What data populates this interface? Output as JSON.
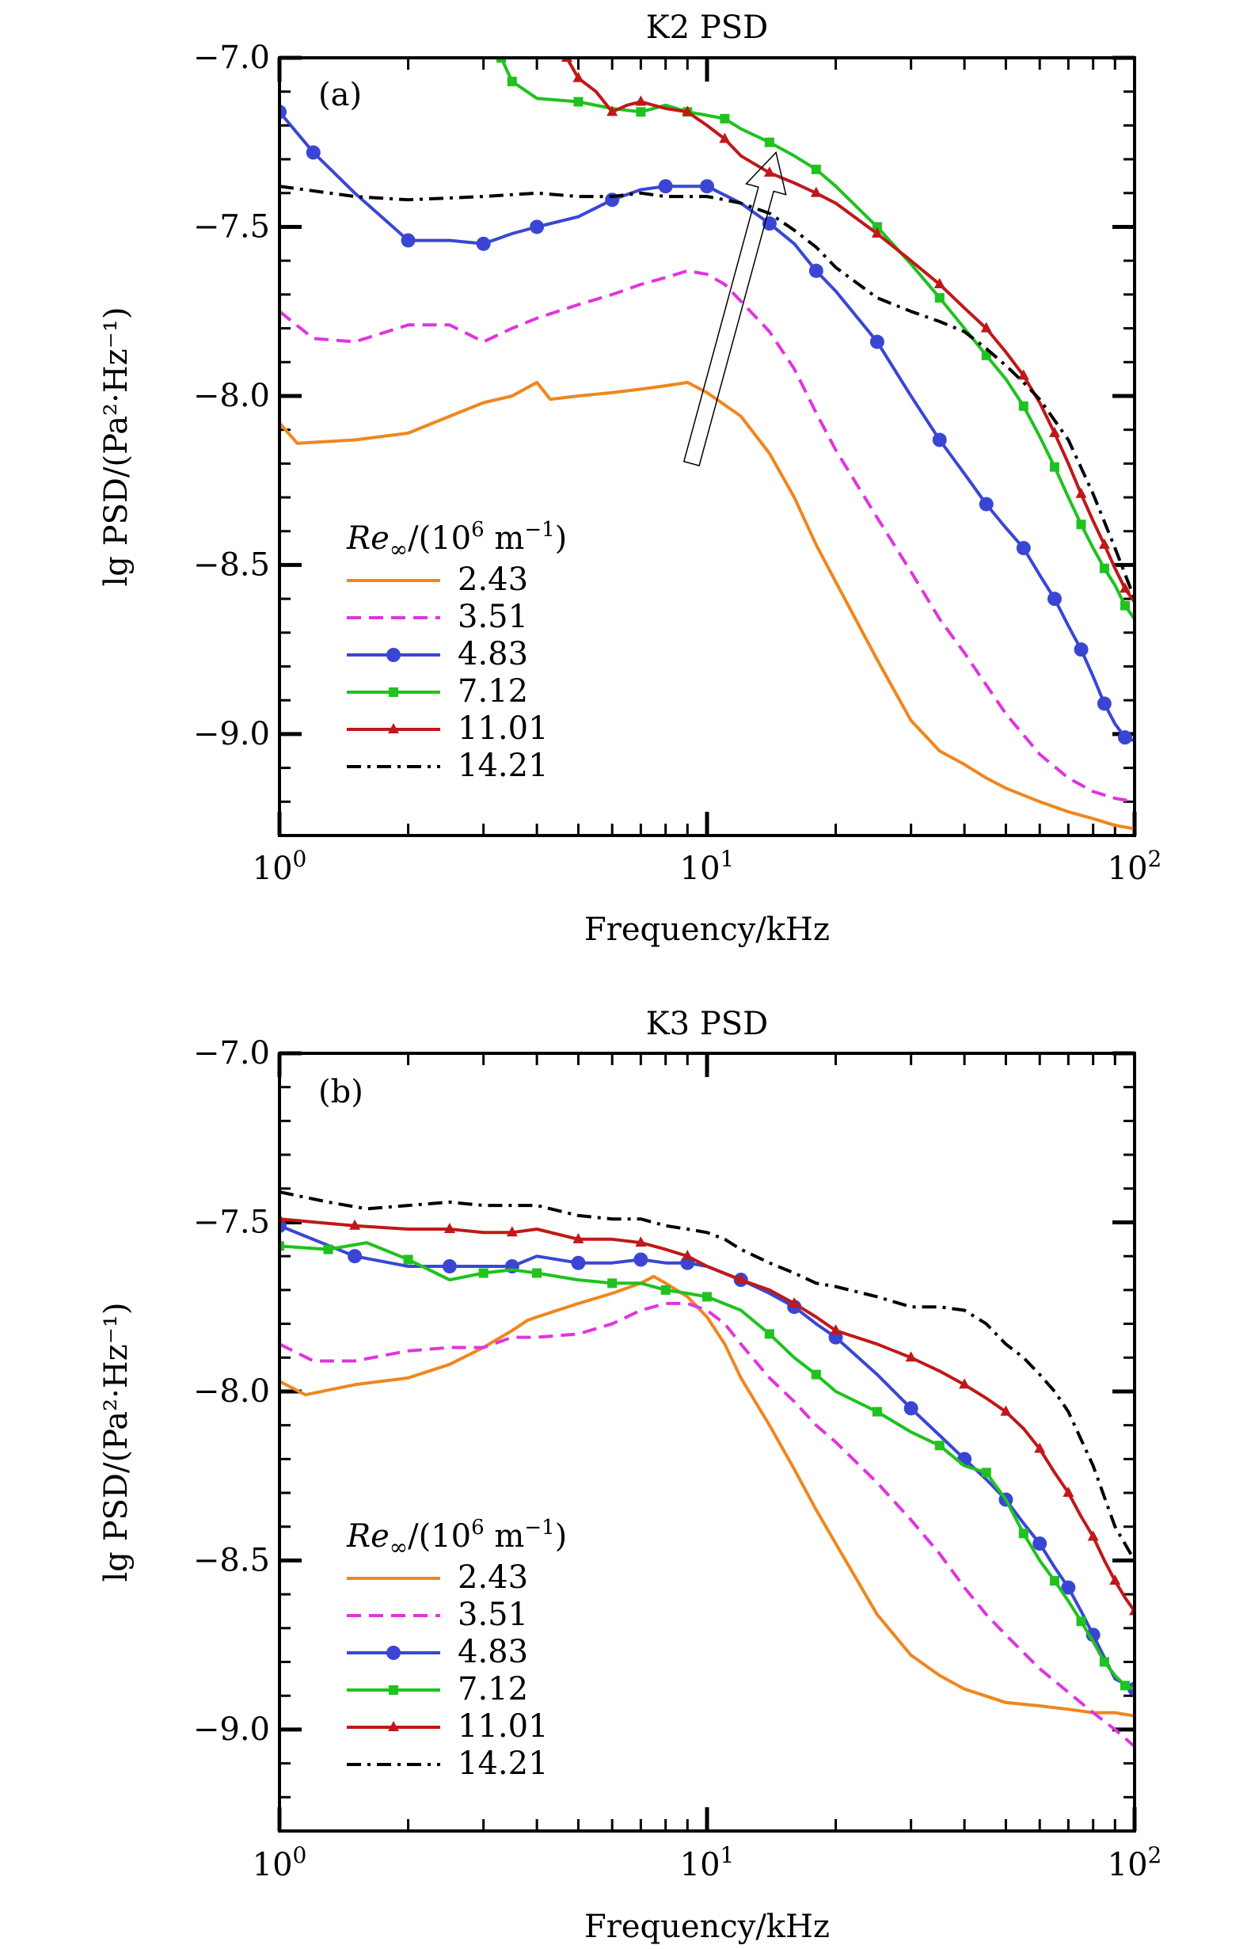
{
  "chart_data": [
    {
      "type": "line",
      "title": "K2 PSD",
      "panel_label": "(a)",
      "xlabel": "Frequency/kHz",
      "ylabel": "lg PSD/(Pa²·Hz⁻¹)",
      "x_scale": "log",
      "xlim": [
        1,
        100
      ],
      "ylim": [
        -9.3,
        -7.0
      ],
      "x_ticks": [
        {
          "value": 1,
          "base": "10",
          "exp": "0"
        },
        {
          "value": 10,
          "base": "10",
          "exp": "1"
        },
        {
          "value": 100,
          "base": "10",
          "exp": "2"
        }
      ],
      "y_ticks": [
        {
          "value": -7.0,
          "label": "−7.0"
        },
        {
          "value": -7.5,
          "label": "−7.5"
        },
        {
          "value": -8.0,
          "label": "−8.0"
        },
        {
          "value": -8.5,
          "label": "−8.5"
        },
        {
          "value": -9.0,
          "label": "−9.0"
        }
      ],
      "legend_title": {
        "base": "Re",
        "sub": "∞",
        "text": "/(10",
        "sup": "6",
        "unit": " m",
        "unit_sup": "−1",
        "close": ")"
      },
      "legend_position": "bottom-left",
      "annotation": "arrow pointing in direction of increasing Re∞ (from lower-left to upper-right)",
      "arrow": {
        "from": [
          9.2,
          -8.2
        ],
        "to": [
          14.5,
          -7.28
        ]
      },
      "series": [
        {
          "name": "2.43",
          "color": "#f0861e",
          "style": "solid",
          "marker": "none",
          "x": [
            1,
            1.1,
            1.5,
            2,
            2.5,
            3,
            3.5,
            4,
            4.3,
            5,
            6,
            7,
            8,
            9,
            10,
            12,
            14,
            16,
            18,
            20,
            25,
            30,
            35,
            40,
            45,
            50,
            60,
            70,
            80,
            90,
            100
          ],
          "y": [
            -8.08,
            -8.14,
            -8.13,
            -8.11,
            -8.06,
            -8.02,
            -8.0,
            -7.96,
            -8.01,
            -8.0,
            -7.99,
            -7.98,
            -7.97,
            -7.96,
            -7.99,
            -8.06,
            -8.17,
            -8.3,
            -8.44,
            -8.55,
            -8.78,
            -8.96,
            -9.05,
            -9.09,
            -9.13,
            -9.16,
            -9.2,
            -9.23,
            -9.25,
            -9.27,
            -9.28
          ]
        },
        {
          "name": "3.51",
          "color": "#e034e0",
          "style": "dashed",
          "marker": "none",
          "x": [
            1,
            1.2,
            1.5,
            2,
            2.5,
            3,
            3.5,
            4,
            5,
            6,
            7,
            8,
            9,
            10,
            11,
            12,
            14,
            16,
            18,
            20,
            25,
            30,
            35,
            40,
            50,
            60,
            70,
            80,
            90,
            100
          ],
          "y": [
            -7.75,
            -7.83,
            -7.84,
            -7.79,
            -7.79,
            -7.84,
            -7.8,
            -7.77,
            -7.73,
            -7.7,
            -7.67,
            -7.65,
            -7.63,
            -7.64,
            -7.67,
            -7.72,
            -7.81,
            -7.92,
            -8.05,
            -8.16,
            -8.36,
            -8.52,
            -8.66,
            -8.76,
            -8.94,
            -9.06,
            -9.13,
            -9.17,
            -9.19,
            -9.2
          ]
        },
        {
          "name": "4.83",
          "color": "#3a46d3",
          "style": "solid",
          "marker": "circle",
          "x": [
            1,
            1.2,
            1.5,
            2,
            2.5,
            3,
            3.5,
            4,
            5,
            6,
            7,
            8,
            9,
            10,
            12,
            14,
            16,
            18,
            20,
            25,
            30,
            35,
            40,
            45,
            50,
            55,
            60,
            65,
            70,
            75,
            80,
            85,
            90,
            95,
            100
          ],
          "y": [
            -7.16,
            -7.28,
            -7.4,
            -7.54,
            -7.54,
            -7.55,
            -7.52,
            -7.5,
            -7.47,
            -7.42,
            -7.39,
            -7.38,
            -7.38,
            -7.38,
            -7.43,
            -7.49,
            -7.55,
            -7.63,
            -7.69,
            -7.84,
            -8.0,
            -8.13,
            -8.23,
            -8.32,
            -8.39,
            -8.45,
            -8.53,
            -8.6,
            -8.68,
            -8.75,
            -8.83,
            -8.91,
            -8.97,
            -9.01,
            -9.02
          ]
        },
        {
          "name": "7.12",
          "color": "#1fc21f",
          "style": "solid",
          "marker": "square",
          "x": [
            3.3,
            3.5,
            4,
            5,
            6,
            7,
            8,
            9,
            10,
            11,
            12,
            14,
            16,
            18,
            20,
            25,
            30,
            35,
            40,
            45,
            50,
            55,
            60,
            65,
            70,
            75,
            80,
            85,
            90,
            95,
            100
          ],
          "y": [
            -7.0,
            -7.07,
            -7.12,
            -7.13,
            -7.15,
            -7.16,
            -7.14,
            -7.16,
            -7.17,
            -7.18,
            -7.21,
            -7.25,
            -7.29,
            -7.33,
            -7.38,
            -7.5,
            -7.61,
            -7.71,
            -7.8,
            -7.88,
            -7.95,
            -8.03,
            -8.12,
            -8.21,
            -8.3,
            -8.38,
            -8.45,
            -8.51,
            -8.56,
            -8.62,
            -8.66
          ]
        },
        {
          "name": "11.01",
          "color": "#c01818",
          "style": "solid",
          "marker": "triangle",
          "x": [
            4.7,
            5,
            5.5,
            6,
            6.5,
            7,
            8,
            9,
            10,
            11,
            12,
            14,
            16,
            18,
            20,
            25,
            30,
            35,
            40,
            45,
            50,
            55,
            60,
            65,
            70,
            75,
            80,
            85,
            90,
            95,
            100
          ],
          "y": [
            -7.0,
            -7.06,
            -7.1,
            -7.16,
            -7.14,
            -7.13,
            -7.15,
            -7.16,
            -7.2,
            -7.24,
            -7.29,
            -7.34,
            -7.37,
            -7.4,
            -7.43,
            -7.52,
            -7.6,
            -7.67,
            -7.74,
            -7.8,
            -7.87,
            -7.94,
            -8.02,
            -8.11,
            -8.2,
            -8.29,
            -8.37,
            -8.44,
            -8.51,
            -8.57,
            -8.61
          ]
        },
        {
          "name": "14.21",
          "color": "#000000",
          "style": "dashdot",
          "marker": "none",
          "x": [
            1,
            1.5,
            2,
            3,
            4,
            5,
            6,
            7,
            8,
            9,
            10,
            11,
            12,
            14,
            16,
            18,
            20,
            25,
            30,
            35,
            40,
            45,
            50,
            55,
            60,
            70,
            80,
            90,
            100
          ],
          "y": [
            -7.38,
            -7.41,
            -7.42,
            -7.41,
            -7.4,
            -7.41,
            -7.41,
            -7.4,
            -7.41,
            -7.41,
            -7.41,
            -7.42,
            -7.43,
            -7.46,
            -7.51,
            -7.56,
            -7.62,
            -7.71,
            -7.75,
            -7.78,
            -7.81,
            -7.86,
            -7.91,
            -7.96,
            -8.01,
            -8.13,
            -8.29,
            -8.45,
            -8.6
          ]
        }
      ]
    },
    {
      "type": "line",
      "title": "K3 PSD",
      "panel_label": "(b)",
      "xlabel": "Frequency/kHz",
      "ylabel": "lg PSD/(Pa²·Hz⁻¹)",
      "x_scale": "log",
      "xlim": [
        1,
        100
      ],
      "ylim": [
        -9.3,
        -7.0
      ],
      "x_ticks": [
        {
          "value": 1,
          "base": "10",
          "exp": "0"
        },
        {
          "value": 10,
          "base": "10",
          "exp": "1"
        },
        {
          "value": 100,
          "base": "10",
          "exp": "2"
        }
      ],
      "y_ticks": [
        {
          "value": -7.0,
          "label": "−7.0"
        },
        {
          "value": -7.5,
          "label": "−7.5"
        },
        {
          "value": -8.0,
          "label": "−8.0"
        },
        {
          "value": -8.5,
          "label": "−8.5"
        },
        {
          "value": -9.0,
          "label": "−9.0"
        }
      ],
      "legend_title": {
        "base": "Re",
        "sub": "∞",
        "text": "/(10",
        "sup": "6",
        "unit": " m",
        "unit_sup": "−1",
        "close": ")"
      },
      "legend_position": "bottom-left",
      "series": [
        {
          "name": "2.43",
          "color": "#f0861e",
          "style": "solid",
          "marker": "none",
          "x": [
            1,
            1.15,
            1.5,
            2,
            2.5,
            3,
            3.5,
            3.8,
            4,
            5,
            6,
            7,
            7.5,
            8,
            9,
            10,
            11,
            12,
            14,
            16,
            18,
            20,
            25,
            30,
            35,
            40,
            50,
            60,
            70,
            80,
            90,
            100
          ],
          "y": [
            -7.97,
            -8.01,
            -7.98,
            -7.96,
            -7.92,
            -7.87,
            -7.82,
            -7.79,
            -7.78,
            -7.74,
            -7.71,
            -7.68,
            -7.66,
            -7.68,
            -7.72,
            -7.78,
            -7.86,
            -7.96,
            -8.1,
            -8.23,
            -8.35,
            -8.45,
            -8.66,
            -8.78,
            -8.84,
            -8.88,
            -8.92,
            -8.93,
            -8.94,
            -8.95,
            -8.95,
            -8.96
          ]
        },
        {
          "name": "3.51",
          "color": "#e034e0",
          "style": "dashed",
          "marker": "none",
          "x": [
            1,
            1.2,
            1.5,
            2,
            2.5,
            3,
            3.5,
            4,
            5,
            6,
            7,
            8,
            9,
            10,
            11,
            12,
            14,
            16,
            18,
            20,
            25,
            30,
            35,
            40,
            45,
            50,
            60,
            70,
            80,
            90,
            100
          ],
          "y": [
            -7.86,
            -7.91,
            -7.91,
            -7.88,
            -7.87,
            -7.87,
            -7.84,
            -7.84,
            -7.83,
            -7.8,
            -7.76,
            -7.74,
            -7.74,
            -7.76,
            -7.8,
            -7.86,
            -7.96,
            -8.03,
            -8.1,
            -8.15,
            -8.27,
            -8.38,
            -8.48,
            -8.58,
            -8.66,
            -8.72,
            -8.82,
            -8.89,
            -8.95,
            -9.0,
            -9.05
          ]
        },
        {
          "name": "4.83",
          "color": "#3a46d3",
          "style": "solid",
          "marker": "circle",
          "x": [
            1,
            1.5,
            2,
            2.5,
            3,
            3.5,
            4,
            5,
            6,
            7,
            8,
            9,
            10,
            12,
            14,
            16,
            18,
            20,
            25,
            30,
            35,
            40,
            45,
            50,
            55,
            60,
            65,
            70,
            75,
            80,
            90,
            100
          ],
          "y": [
            -7.51,
            -7.6,
            -7.63,
            -7.63,
            -7.63,
            -7.63,
            -7.6,
            -7.62,
            -7.62,
            -7.61,
            -7.62,
            -7.62,
            -7.63,
            -7.67,
            -7.71,
            -7.75,
            -7.8,
            -7.84,
            -7.95,
            -8.05,
            -8.13,
            -8.2,
            -8.26,
            -8.32,
            -8.39,
            -8.45,
            -8.52,
            -8.58,
            -8.65,
            -8.72,
            -8.85,
            -8.88
          ]
        },
        {
          "name": "7.12",
          "color": "#1fc21f",
          "style": "solid",
          "marker": "square",
          "x": [
            1,
            1.3,
            1.6,
            2,
            2.5,
            3,
            3.5,
            4,
            5,
            6,
            7,
            8,
            9,
            10,
            12,
            14,
            16,
            18,
            20,
            25,
            30,
            35,
            40,
            45,
            50,
            55,
            60,
            65,
            70,
            75,
            80,
            85,
            90,
            95,
            100
          ],
          "y": [
            -7.57,
            -7.58,
            -7.56,
            -7.61,
            -7.67,
            -7.65,
            -7.64,
            -7.65,
            -7.67,
            -7.68,
            -7.68,
            -7.7,
            -7.71,
            -7.72,
            -7.76,
            -7.83,
            -7.9,
            -7.95,
            -8.0,
            -8.06,
            -8.12,
            -8.16,
            -8.22,
            -8.24,
            -8.32,
            -8.42,
            -8.5,
            -8.56,
            -8.62,
            -8.68,
            -8.74,
            -8.8,
            -8.84,
            -8.87,
            -8.88
          ]
        },
        {
          "name": "11.01",
          "color": "#c01818",
          "style": "solid",
          "marker": "triangle",
          "x": [
            1,
            1.5,
            2,
            2.5,
            3,
            3.5,
            4,
            5,
            6,
            7,
            8,
            9,
            10,
            12,
            14,
            16,
            18,
            20,
            25,
            30,
            35,
            40,
            45,
            50,
            55,
            60,
            65,
            70,
            75,
            80,
            85,
            90,
            95,
            100
          ],
          "y": [
            -7.49,
            -7.51,
            -7.52,
            -7.52,
            -7.53,
            -7.53,
            -7.52,
            -7.55,
            -7.55,
            -7.56,
            -7.58,
            -7.6,
            -7.63,
            -7.67,
            -7.7,
            -7.74,
            -7.78,
            -7.82,
            -7.86,
            -7.9,
            -7.94,
            -7.98,
            -8.02,
            -8.06,
            -8.11,
            -8.17,
            -8.24,
            -8.3,
            -8.37,
            -8.43,
            -8.5,
            -8.56,
            -8.61,
            -8.65
          ]
        },
        {
          "name": "14.21",
          "color": "#000000",
          "style": "dashdot",
          "marker": "none",
          "x": [
            1,
            1.3,
            1.6,
            2,
            2.5,
            3,
            3.5,
            4,
            5,
            6,
            7,
            8,
            9,
            10,
            11,
            12,
            14,
            16,
            18,
            20,
            25,
            30,
            35,
            40,
            45,
            50,
            55,
            60,
            65,
            70,
            80,
            90,
            100
          ],
          "y": [
            -7.41,
            -7.44,
            -7.46,
            -7.45,
            -7.44,
            -7.45,
            -7.45,
            -7.45,
            -7.48,
            -7.49,
            -7.49,
            -7.51,
            -7.52,
            -7.53,
            -7.55,
            -7.58,
            -7.62,
            -7.65,
            -7.68,
            -7.69,
            -7.72,
            -7.75,
            -7.75,
            -7.76,
            -7.8,
            -7.86,
            -7.9,
            -7.95,
            -8.0,
            -8.06,
            -8.22,
            -8.4,
            -8.5
          ]
        }
      ]
    }
  ]
}
